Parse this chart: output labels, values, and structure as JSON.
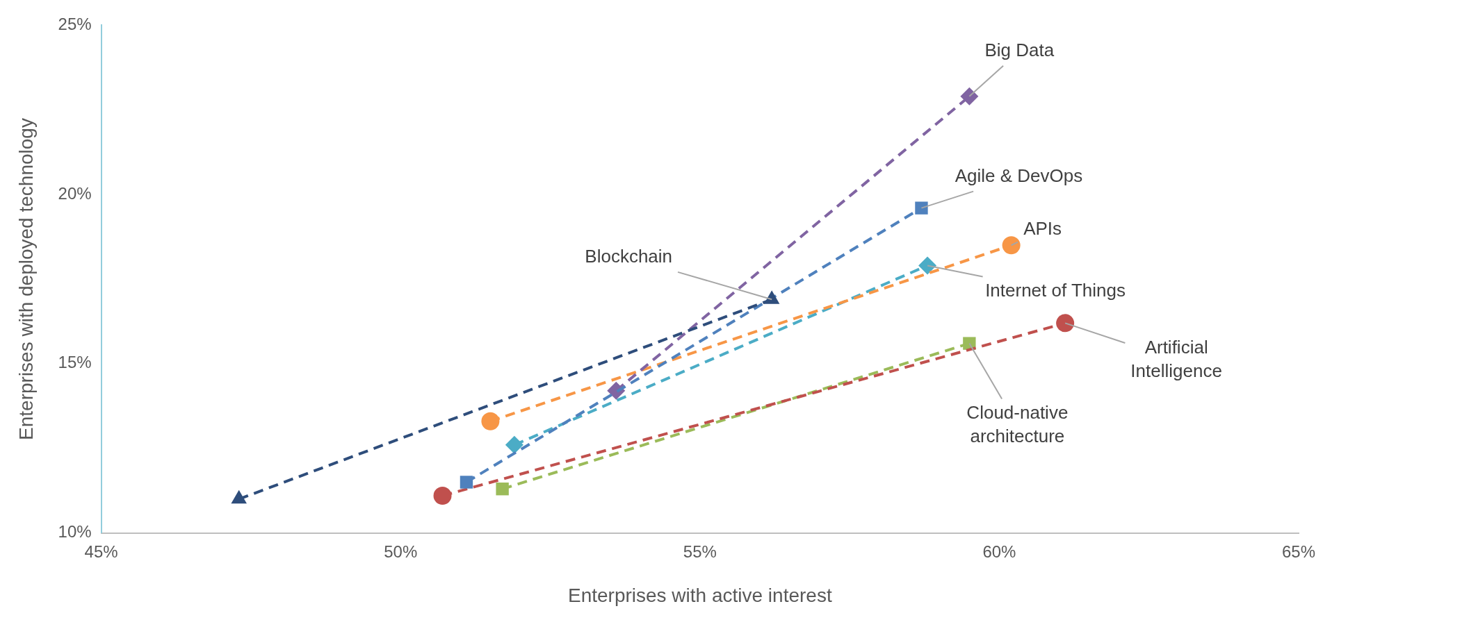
{
  "chart_data": {
    "type": "line",
    "xlabel": "Enterprises with active interest",
    "ylabel": "Enterprises with deployed technology",
    "xlim": [
      45,
      65
    ],
    "xticks": [
      {
        "value": 45,
        "label": "45%"
      },
      {
        "value": 50,
        "label": "50%"
      },
      {
        "value": 55,
        "label": "55%"
      },
      {
        "value": 60,
        "label": "60%"
      },
      {
        "value": 65,
        "label": "65%"
      }
    ],
    "ylim": [
      10,
      25
    ],
    "yticks": [
      {
        "value": 10,
        "label": "10%"
      },
      {
        "value": 15,
        "label": "15%"
      },
      {
        "value": 20,
        "label": "20%"
      },
      {
        "value": 25,
        "label": "25%"
      }
    ],
    "grid": false,
    "legend": false,
    "line_style": "dashed",
    "series": [
      {
        "name": "Blockchain",
        "color": "#2e4d7b",
        "marker": "triangle",
        "x": [
          47.3,
          56.2
        ],
        "values": [
          11.0,
          16.9
        ]
      },
      {
        "name": "Agile & DevOps",
        "color": "#4f81bd",
        "marker": "square",
        "x": [
          51.1,
          58.7
        ],
        "values": [
          11.5,
          19.6
        ]
      },
      {
        "name": "Big Data",
        "color": "#8064a2",
        "marker": "diamond",
        "x": [
          53.6,
          59.5
        ],
        "values": [
          14.2,
          22.9
        ]
      },
      {
        "name": "APIs",
        "color": "#f79646",
        "marker": "circle",
        "x": [
          51.5,
          60.2
        ],
        "values": [
          13.3,
          18.5
        ]
      },
      {
        "name": "Internet of Things",
        "color": "#4bacc6",
        "marker": "diamond",
        "x": [
          51.9,
          58.8
        ],
        "values": [
          12.6,
          17.9
        ]
      },
      {
        "name": "Artificial Intelligence",
        "color": "#c0504d",
        "marker": "circle",
        "x": [
          50.7,
          61.1
        ],
        "values": [
          11.1,
          16.2
        ]
      },
      {
        "name": "Cloud-native architecture",
        "color": "#9bbb59",
        "marker": "square",
        "x": [
          51.7,
          59.5
        ],
        "values": [
          11.3,
          15.6
        ]
      }
    ]
  }
}
